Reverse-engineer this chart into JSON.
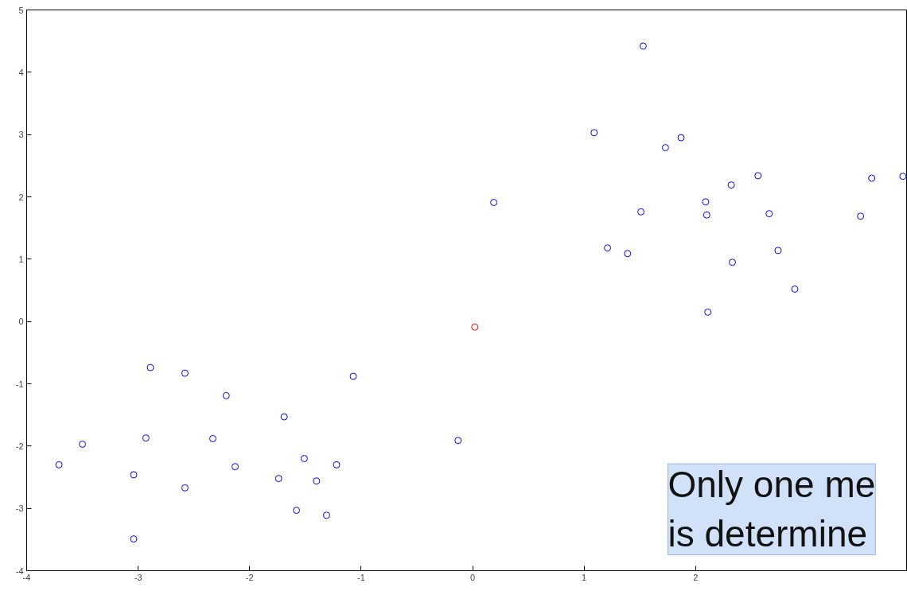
{
  "chart_data": {
    "type": "scatter",
    "xlim": [
      -4,
      3.9
    ],
    "ylim": [
      -4,
      5
    ],
    "xticks": [
      -4,
      -3,
      -2,
      -1,
      0,
      1,
      2
    ],
    "yticks": [
      -4,
      -3,
      -2,
      -1,
      0,
      1,
      2,
      3,
      4,
      5
    ],
    "grid": false,
    "marker": "circle",
    "series": [
      {
        "color": "#0000ff",
        "x": [
          -3.71,
          -3.5,
          -3.04,
          -3.04,
          -2.93,
          -2.89,
          -2.58,
          -2.58,
          -2.33,
          -2.21,
          -2.13,
          -1.74,
          -1.69,
          -1.58,
          -1.51,
          -1.4,
          -1.31,
          -1.22,
          -1.07,
          -0.13,
          0.19,
          1.09,
          1.21,
          1.39,
          1.51,
          1.53,
          1.73,
          1.87,
          2.09,
          2.1,
          2.11,
          2.32,
          2.33,
          2.56,
          2.66,
          2.74,
          2.89,
          3.48,
          3.58,
          3.86
        ],
        "values": [
          -2.3,
          -1.97,
          -2.46,
          -3.49,
          -1.87,
          -0.74,
          -0.83,
          -2.67,
          -1.88,
          -1.19,
          -2.33,
          -2.52,
          -1.53,
          -3.03,
          -2.2,
          -2.56,
          -3.11,
          -2.3,
          -0.88,
          -1.91,
          1.91,
          3.03,
          1.18,
          1.09,
          1.76,
          4.42,
          2.79,
          2.95,
          1.92,
          1.71,
          0.15,
          2.19,
          0.95,
          2.34,
          1.73,
          1.14,
          0.52,
          1.69,
          2.3,
          2.33
        ]
      },
      {
        "color": "#ff0000",
        "x": [
          0.02
        ],
        "values": [
          -0.09
        ]
      }
    ],
    "annotations": [
      "Only one me\nis determine"
    ]
  }
}
